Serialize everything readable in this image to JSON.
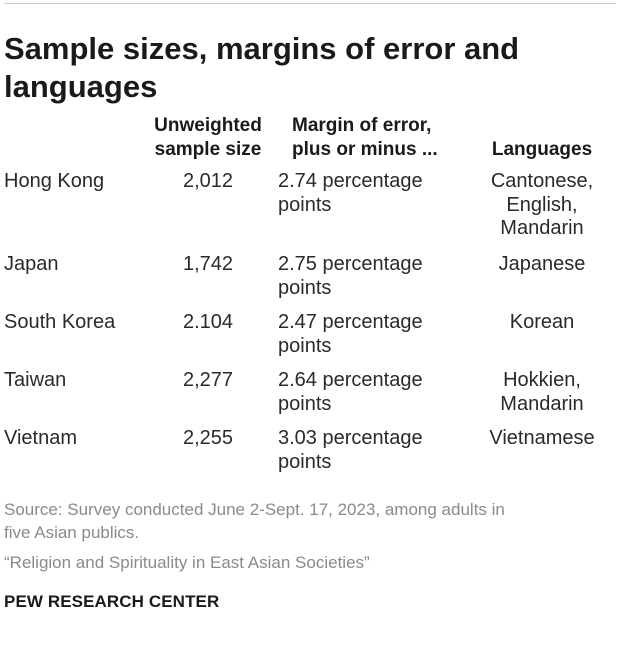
{
  "title": "Sample sizes, margins of error and languages",
  "headers": {
    "sample_size_line1": "Unweighted",
    "sample_size_line2": "sample size",
    "moe_line1": "Margin of error,",
    "moe_line2": "plus or minus ...",
    "languages": "Languages"
  },
  "rows": [
    {
      "name": "Hong Kong",
      "sample_size": "2,012",
      "moe_line1": "2.74 percentage",
      "moe_line2": "points",
      "languages": [
        "Cantonese,",
        "English,",
        "Mandarin"
      ]
    },
    {
      "name": "Japan",
      "sample_size": "1,742",
      "moe_line1": "2.75 percentage",
      "moe_line2": "points",
      "languages": [
        "Japanese"
      ]
    },
    {
      "name": "South Korea",
      "sample_size": "2.104",
      "moe_line1": "2.47 percentage",
      "moe_line2": "points",
      "languages": [
        "Korean"
      ]
    },
    {
      "name": "Taiwan",
      "sample_size": "2,277",
      "moe_line1": "2.64 percentage",
      "moe_line2": "points",
      "languages": [
        "Hokkien,",
        "Mandarin"
      ]
    },
    {
      "name": "Vietnam",
      "sample_size": "2,255",
      "moe_line1": "3.03 percentage",
      "moe_line2": "points",
      "languages": [
        "Vietnamese"
      ]
    }
  ],
  "footer": {
    "source_line1": "Source: Survey conducted June 2-Sept. 17, 2023, among adults in",
    "source_line2": "five Asian publics.",
    "report": "“Religion and Spirituality in East Asian Societies”",
    "org": "PEW RESEARCH CENTER"
  }
}
